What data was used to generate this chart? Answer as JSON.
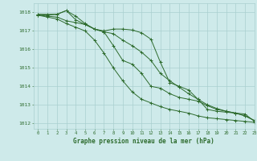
{
  "title": "Graphe pression niveau de la mer (hPa)",
  "background_color": "#ceeaea",
  "grid_color": "#aacfcf",
  "line_color": "#2d6b2d",
  "xlim": [
    -0.5,
    23
  ],
  "ylim": [
    1011.7,
    1018.5
  ],
  "yticks": [
    1012,
    1013,
    1014,
    1015,
    1016,
    1017,
    1018
  ],
  "xticks": [
    0,
    1,
    2,
    3,
    4,
    5,
    6,
    7,
    8,
    9,
    10,
    11,
    12,
    13,
    14,
    15,
    16,
    17,
    18,
    19,
    20,
    21,
    22,
    23
  ],
  "series": [
    {
      "x": [
        0,
        1,
        2,
        3,
        4,
        5,
        6,
        7,
        8,
        9,
        10,
        11,
        12,
        13,
        14,
        15,
        16,
        17,
        18,
        19,
        20,
        21,
        22,
        23
      ],
      "y": [
        1017.9,
        1017.9,
        1017.9,
        1018.1,
        1017.8,
        1017.4,
        1017.1,
        1017.0,
        1017.1,
        1017.1,
        1017.05,
        1016.9,
        1016.55,
        1015.3,
        1014.2,
        1014.0,
        1013.8,
        1013.3,
        1012.75,
        1012.65,
        1012.6,
        1012.55,
        1012.5,
        1012.1
      ]
    },
    {
      "x": [
        0,
        1,
        2,
        3,
        4,
        5,
        6,
        7,
        8,
        9,
        10,
        11,
        12,
        13,
        14,
        15,
        16,
        17,
        18,
        19,
        20,
        21,
        22,
        23
      ],
      "y": [
        1017.9,
        1017.85,
        1017.9,
        1018.1,
        1017.6,
        1017.35,
        1017.1,
        1016.95,
        1016.85,
        1016.5,
        1016.2,
        1015.85,
        1015.4,
        1014.7,
        1014.3,
        1013.95,
        1013.6,
        1013.3,
        1013.0,
        1012.8,
        1012.65,
        1012.55,
        1012.4,
        1012.15
      ]
    },
    {
      "x": [
        0,
        1,
        2,
        3,
        4,
        5,
        6,
        7,
        8,
        9,
        10,
        11,
        12,
        13,
        14,
        15,
        16,
        17,
        18,
        19,
        20,
        21,
        22,
        23
      ],
      "y": [
        1017.85,
        1017.8,
        1017.75,
        1017.55,
        1017.45,
        1017.35,
        1017.1,
        1016.95,
        1016.2,
        1015.4,
        1015.2,
        1014.7,
        1014.0,
        1013.9,
        1013.6,
        1013.4,
        1013.3,
        1013.2,
        1012.95,
        1012.75,
        1012.65,
        1012.55,
        1012.4,
        1012.15
      ]
    },
    {
      "x": [
        0,
        1,
        2,
        3,
        4,
        5,
        6,
        7,
        8,
        9,
        10,
        11,
        12,
        13,
        14,
        15,
        16,
        17,
        18,
        19,
        20,
        21,
        22,
        23
      ],
      "y": [
        1017.85,
        1017.75,
        1017.65,
        1017.4,
        1017.2,
        1017.0,
        1016.5,
        1015.8,
        1015.0,
        1014.3,
        1013.7,
        1013.3,
        1013.1,
        1012.9,
        1012.75,
        1012.65,
        1012.55,
        1012.4,
        1012.3,
        1012.25,
        1012.2,
        1012.15,
        1012.1,
        1012.05
      ]
    }
  ]
}
